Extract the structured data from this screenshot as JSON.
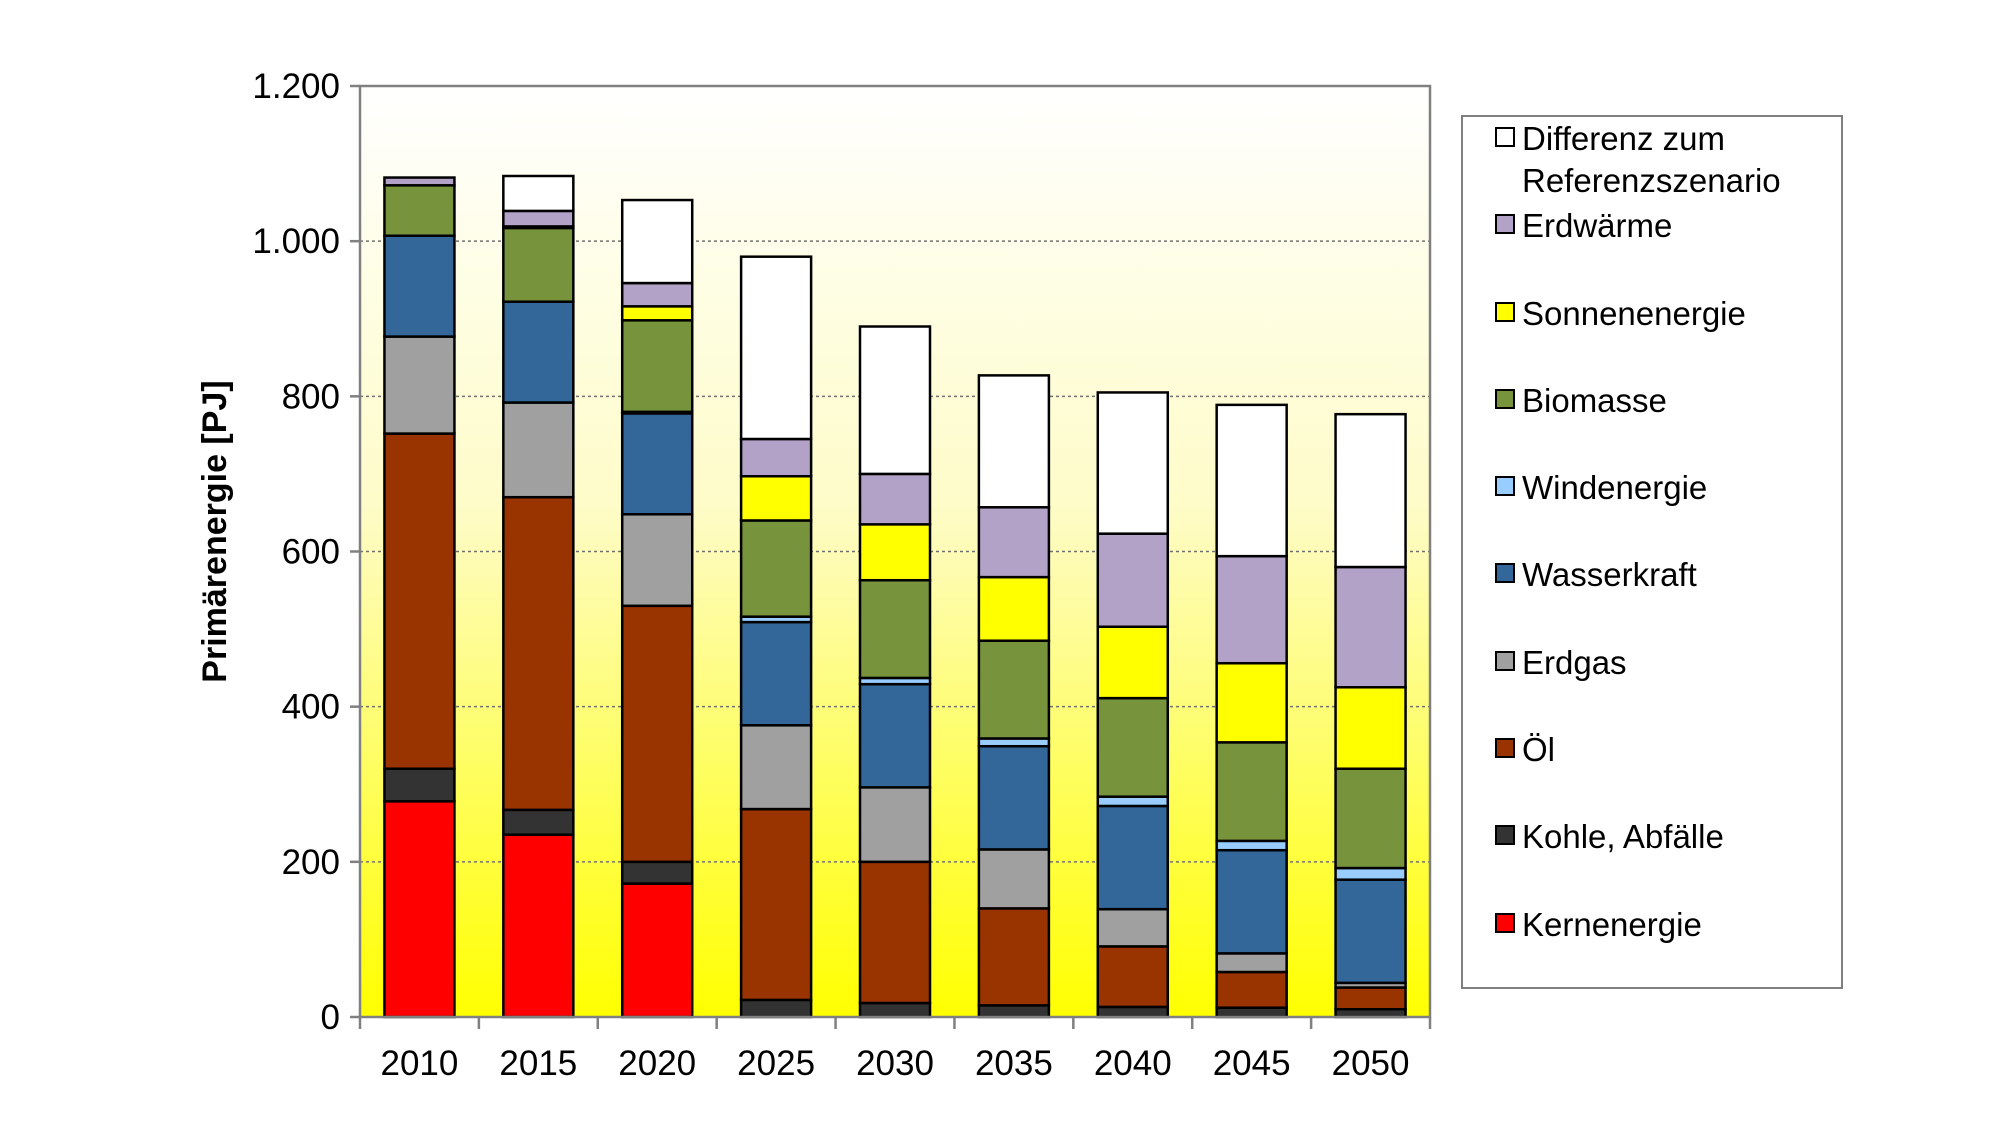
{
  "chart_data": {
    "type": "bar",
    "stacked": true,
    "ylabel": "Primärenergie [PJ]",
    "ylim": [
      0,
      1200
    ],
    "y_ticks": [
      0,
      200,
      400,
      600,
      800,
      1000,
      1200
    ],
    "y_tick_labels": [
      "0",
      "200",
      "400",
      "600",
      "800",
      "1.000",
      "1.200"
    ],
    "grid": "horizontal dotted",
    "background": "gradient white to yellow",
    "legend_position": "right",
    "categories": [
      "2010",
      "2015",
      "2020",
      "2025",
      "2030",
      "2035",
      "2040",
      "2045",
      "2050"
    ],
    "series": [
      {
        "name": "Kernenergie",
        "color": "#ff0000",
        "values": [
          278,
          235,
          172,
          0,
          0,
          0,
          0,
          0,
          0
        ]
      },
      {
        "name": "Kohle, Abfälle",
        "color": "#333333",
        "values": [
          42,
          32,
          28,
          22,
          18,
          15,
          13,
          12,
          10
        ]
      },
      {
        "name": "Öl",
        "color": "#993300",
        "values": [
          432,
          403,
          330,
          246,
          182,
          125,
          78,
          46,
          28
        ]
      },
      {
        "name": "Erdgas",
        "color": "#a0a0a0",
        "values": [
          125,
          122,
          118,
          108,
          96,
          76,
          48,
          24,
          6
        ]
      },
      {
        "name": "Wasserkraft",
        "color": "#336699",
        "values": [
          130,
          130,
          130,
          133,
          133,
          133,
          133,
          133,
          133
        ]
      },
      {
        "name": "Windenergie",
        "color": "#99ccff",
        "values": [
          0,
          0,
          2,
          7,
          8,
          10,
          12,
          12,
          15
        ]
      },
      {
        "name": "Biomasse",
        "color": "#77933c",
        "values": [
          65,
          95,
          118,
          124,
          126,
          126,
          127,
          127,
          128
        ]
      },
      {
        "name": "Sonnenenergie",
        "color": "#ffff00",
        "values": [
          0,
          2,
          18,
          57,
          72,
          82,
          92,
          102,
          105
        ]
      },
      {
        "name": "Erdwärme",
        "color": "#b3a2c7",
        "values": [
          10,
          20,
          30,
          48,
          65,
          90,
          120,
          138,
          155
        ]
      },
      {
        "name": "Differenz zum Referenzszenario",
        "color": "#ffffff",
        "values": [
          0,
          45,
          107,
          235,
          190,
          170,
          182,
          195,
          197
        ]
      }
    ],
    "legend_order": [
      "Differenz zum Referenzszenario",
      "Erdwärme",
      "Sonnenenergie",
      "Biomasse",
      "Windenergie",
      "Wasserkraft",
      "Erdgas",
      "Öl",
      "Kohle, Abfälle",
      "Kernenergie"
    ],
    "legend_lines": {
      "Differenz zum Referenzszenario": [
        "Differenz zum",
        "Referenzszenario"
      ]
    }
  }
}
